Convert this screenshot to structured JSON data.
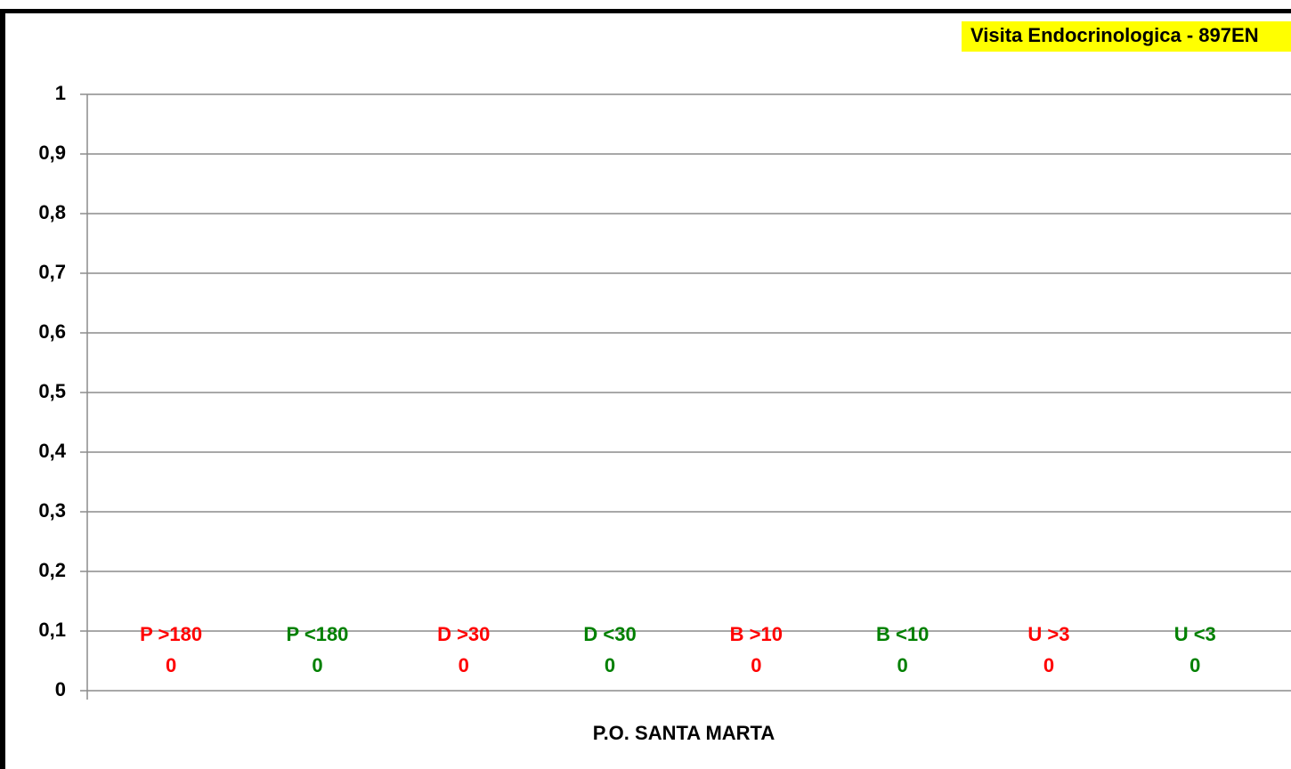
{
  "chart_data": {
    "type": "bar",
    "title": "Visita Endocrinologica - 897EN",
    "xlabel": "P.O. SANTA MARTA",
    "categories": [
      "P >180",
      "P <180",
      "D >30",
      "D <30",
      "B >10",
      "B <10",
      "U >3",
      "U <3"
    ],
    "values": [
      0,
      0,
      0,
      0,
      0,
      0,
      0,
      0
    ],
    "colors": [
      "#ff0000",
      "#008000",
      "#ff0000",
      "#008000",
      "#ff0000",
      "#008000",
      "#ff0000",
      "#008000"
    ],
    "ylim": [
      0,
      1
    ],
    "yticks": [
      0,
      {
        "value": 0.1,
        "label": "0,1"
      },
      {
        "value": 0.2,
        "label": "0,2"
      },
      {
        "value": 0.3,
        "label": "0,3"
      },
      {
        "value": 0.4,
        "label": "0,4"
      },
      {
        "value": 0.5,
        "label": "0,5"
      },
      {
        "value": 0.6,
        "label": "0,6"
      },
      {
        "value": 0.7,
        "label": "0,7"
      },
      {
        "value": 0.8,
        "label": "0,8"
      },
      {
        "value": 0.9,
        "label": "0,9"
      },
      1
    ],
    "grid": true
  }
}
